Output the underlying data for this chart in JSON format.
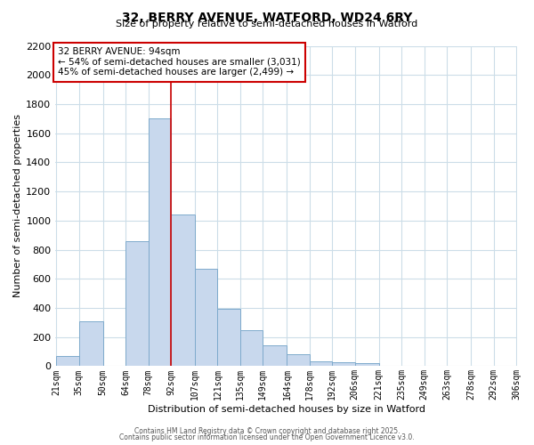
{
  "title": "32, BERRY AVENUE, WATFORD, WD24 6RY",
  "subtitle": "Size of property relative to semi-detached houses in Watford",
  "xlabel": "Distribution of semi-detached houses by size in Watford",
  "ylabel": "Number of semi-detached properties",
  "annotation_line1": "32 BERRY AVENUE: 94sqm",
  "annotation_line2": "← 54% of semi-detached houses are smaller (3,031)",
  "annotation_line3": "45% of semi-detached houses are larger (2,499) →",
  "footer1": "Contains HM Land Registry data © Crown copyright and database right 2025.",
  "footer2": "Contains public sector information licensed under the Open Government Licence v3.0.",
  "bin_labels": [
    "21sqm",
    "35sqm",
    "50sqm",
    "64sqm",
    "78sqm",
    "92sqm",
    "107sqm",
    "121sqm",
    "135sqm",
    "149sqm",
    "164sqm",
    "178sqm",
    "192sqm",
    "206sqm",
    "221sqm",
    "235sqm",
    "249sqm",
    "263sqm",
    "278sqm",
    "292sqm",
    "306sqm"
  ],
  "bin_edges": [
    21,
    35,
    50,
    64,
    78,
    92,
    107,
    121,
    135,
    149,
    164,
    178,
    192,
    206,
    221,
    235,
    249,
    263,
    278,
    292,
    306
  ],
  "bar_heights": [
    70,
    310,
    0,
    860,
    1700,
    1040,
    670,
    395,
    245,
    145,
    80,
    35,
    25,
    20,
    5,
    0,
    0,
    0,
    0,
    0
  ],
  "bar_color": "#c8d8ed",
  "bar_edgecolor": "#7eaacc",
  "property_line_x": 92,
  "ylim": [
    0,
    2200
  ],
  "yticks": [
    0,
    200,
    400,
    600,
    800,
    1000,
    1200,
    1400,
    1600,
    1800,
    2000,
    2200
  ],
  "background_color": "#ffffff",
  "grid_color": "#ccdde8",
  "annotation_box_color": "#ffffff",
  "annotation_box_edgecolor": "#cc0000",
  "vline_color": "#cc0000"
}
